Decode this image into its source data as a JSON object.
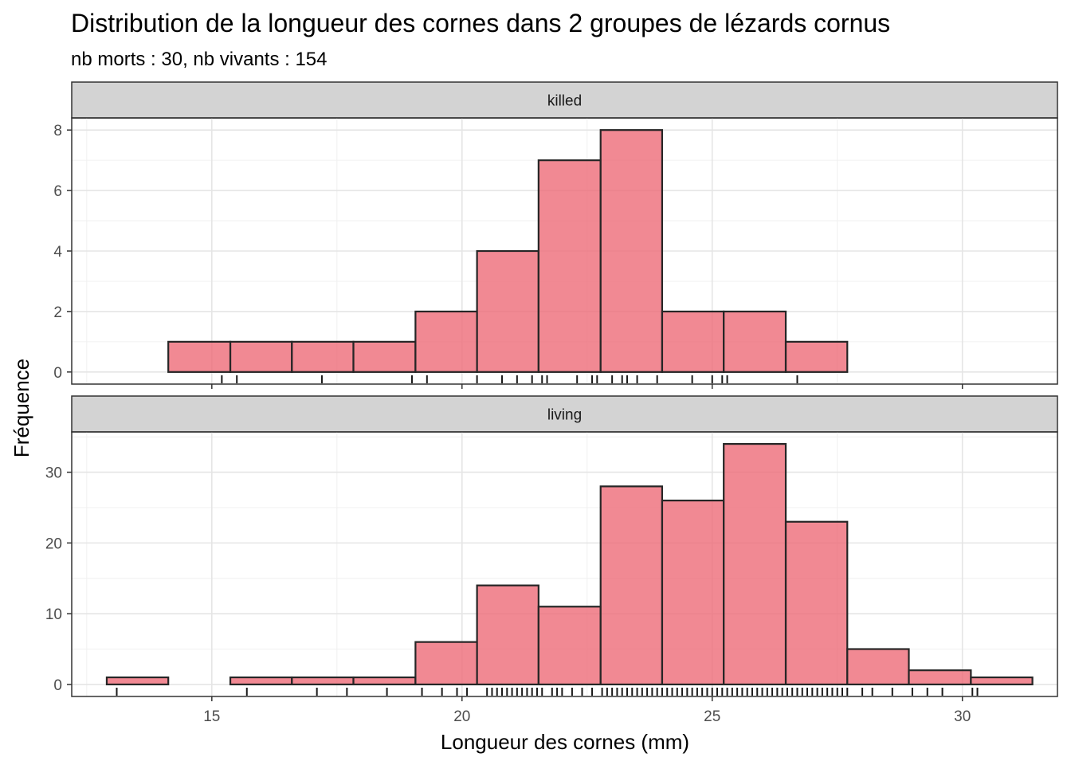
{
  "chart_data": {
    "type": "bar",
    "title": "Distribution de la longueur des cornes dans 2 groupes de lézards cornus",
    "subtitle": "nb morts : 30, nb vivants : 154",
    "xlabel": "Longueur des cornes (mm)",
    "ylabel": "Fréquence",
    "x_ticks": [
      15,
      20,
      25,
      30
    ],
    "x_range": [
      12.2,
      31.9
    ],
    "bin_edges": [
      12.9,
      14.13,
      15.37,
      16.6,
      17.83,
      19.07,
      20.3,
      21.53,
      22.77,
      24.0,
      25.23,
      26.47,
      27.7,
      28.93,
      30.17,
      31.4
    ],
    "bar_fill": "#ee6b78",
    "bar_outline": "#262626",
    "strip_fill": "#d3d3d3",
    "grid": true,
    "panels": [
      {
        "name": "killed",
        "counts": [
          0,
          1,
          1,
          1,
          1,
          2,
          4,
          7,
          8,
          2,
          2,
          1,
          0,
          0,
          0
        ],
        "y_ticks": [
          0,
          2,
          4,
          6,
          8
        ],
        "ylim": [
          -0.4,
          8.4
        ],
        "rug": [
          15.2,
          15.5,
          17.2,
          19.0,
          19.3,
          20.3,
          20.8,
          21.1,
          21.4,
          21.6,
          21.7,
          22.3,
          22.6,
          22.7,
          23.0,
          23.2,
          23.3,
          23.5,
          23.9,
          24.6,
          25.0,
          25.2,
          25.3,
          26.7
        ]
      },
      {
        "name": "living",
        "counts": [
          1,
          0,
          1,
          1,
          1,
          6,
          14,
          11,
          28,
          26,
          34,
          23,
          5,
          2,
          1
        ],
        "y_ticks": [
          0,
          10,
          20,
          30
        ],
        "ylim": [
          -1.7,
          35.7
        ],
        "rug": [
          13.1,
          15.7,
          17.1,
          17.7,
          18.5,
          19.2,
          19.6,
          19.9,
          20.1,
          20.5,
          20.6,
          20.7,
          20.8,
          20.9,
          21.0,
          21.1,
          21.2,
          21.3,
          21.4,
          21.5,
          21.6,
          21.8,
          21.9,
          22.0,
          22.2,
          22.4,
          22.6,
          22.8,
          22.9,
          23.0,
          23.1,
          23.2,
          23.3,
          23.4,
          23.5,
          23.6,
          23.7,
          23.8,
          23.9,
          24.0,
          24.1,
          24.2,
          24.3,
          24.4,
          24.5,
          24.6,
          24.7,
          24.8,
          24.9,
          25.0,
          25.1,
          25.2,
          25.3,
          25.4,
          25.5,
          25.6,
          25.7,
          25.8,
          25.9,
          26.0,
          26.1,
          26.2,
          26.3,
          26.4,
          26.5,
          26.6,
          26.7,
          26.8,
          26.9,
          27.0,
          27.1,
          27.2,
          27.3,
          27.4,
          27.5,
          27.6,
          27.7,
          28.0,
          28.2,
          28.6,
          29.0,
          29.3,
          29.6,
          30.2,
          30.3
        ]
      }
    ]
  }
}
